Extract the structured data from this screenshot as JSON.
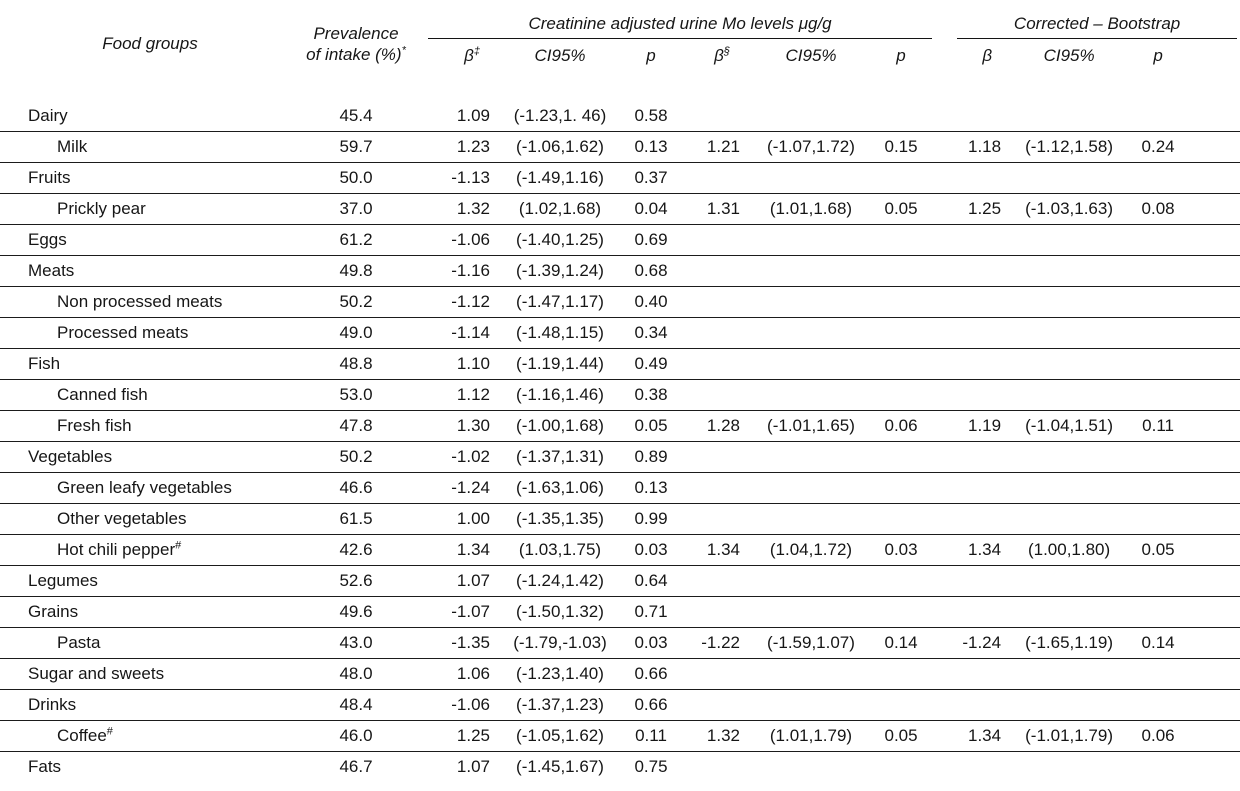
{
  "colors": {
    "background": "#ffffff",
    "text": "#161616",
    "rule": "#1b1b1b"
  },
  "header": {
    "col_food": "Food groups",
    "prevalence_line1": "Prevalence",
    "prevalence_line2": "of intake (%)",
    "prevalence_sup": "*",
    "span_creatinine": "Creatinine adjusted urine Mo levels μg/g",
    "span_bootstrap": "Corrected – Bootstrap",
    "subcols": [
      {
        "text": "β",
        "sup": "‡"
      },
      {
        "text": "CI95%",
        "sup": ""
      },
      {
        "text": "p",
        "sup": ""
      },
      {
        "text": "β",
        "sup": "§"
      },
      {
        "text": "CI95%",
        "sup": ""
      },
      {
        "text": "p",
        "sup": ""
      },
      {
        "text": "β",
        "sup": ""
      },
      {
        "text": "CI95%",
        "sup": ""
      },
      {
        "text": "p",
        "sup": ""
      }
    ]
  },
  "rows": [
    {
      "label": "Dairy",
      "sup": "",
      "indent": false,
      "values": [
        "45.4",
        "1.09",
        "(-1.23,1. 46)",
        "0.58",
        "",
        "",
        "",
        "",
        "",
        ""
      ]
    },
    {
      "label": "Milk",
      "sup": "",
      "indent": true,
      "values": [
        "59.7",
        "1.23",
        "(-1.06,1.62)",
        "0.13",
        "1.21",
        "(-1.07,1.72)",
        "0.15",
        "1.18",
        "(-1.12,1.58)",
        "0.24"
      ]
    },
    {
      "label": "Fruits",
      "sup": "",
      "indent": false,
      "values": [
        "50.0",
        "-1.13",
        "(-1.49,1.16)",
        "0.37",
        "",
        "",
        "",
        "",
        "",
        ""
      ]
    },
    {
      "label": "Prickly pear",
      "sup": "",
      "indent": true,
      "values": [
        "37.0",
        "1.32",
        "(1.02,1.68)",
        "0.04",
        "1.31",
        "(1.01,1.68)",
        "0.05",
        "1.25",
        "(-1.03,1.63)",
        "0.08"
      ]
    },
    {
      "label": "Eggs",
      "sup": "",
      "indent": false,
      "values": [
        "61.2",
        "-1.06",
        "(-1.40,1.25)",
        "0.69",
        "",
        "",
        "",
        "",
        "",
        ""
      ]
    },
    {
      "label": "Meats",
      "sup": "",
      "indent": false,
      "values": [
        "49.8",
        "-1.16",
        "(-1.39,1.24)",
        "0.68",
        "",
        "",
        "",
        "",
        "",
        ""
      ]
    },
    {
      "label": "Non processed meats",
      "sup": "",
      "indent": true,
      "values": [
        "50.2",
        "-1.12",
        "(-1.47,1.17)",
        "0.40",
        "",
        "",
        "",
        "",
        "",
        ""
      ]
    },
    {
      "label": "Processed meats",
      "sup": "",
      "indent": true,
      "values": [
        "49.0",
        "-1.14",
        "(-1.48,1.15)",
        "0.34",
        "",
        "",
        "",
        "",
        "",
        ""
      ]
    },
    {
      "label": "Fish",
      "sup": "",
      "indent": false,
      "values": [
        "48.8",
        "1.10",
        "(-1.19,1.44)",
        "0.49",
        "",
        "",
        "",
        "",
        "",
        ""
      ]
    },
    {
      "label": "Canned fish",
      "sup": "",
      "indent": true,
      "values": [
        "53.0",
        "1.12",
        "(-1.16,1.46)",
        "0.38",
        "",
        "",
        "",
        "",
        "",
        ""
      ]
    },
    {
      "label": "Fresh fish",
      "sup": "",
      "indent": true,
      "values": [
        "47.8",
        "1.30",
        "(-1.00,1.68)",
        "0.05",
        "1.28",
        "(-1.01,1.65)",
        "0.06",
        "1.19",
        "(-1.04,1.51)",
        "0.11"
      ]
    },
    {
      "label": "Vegetables",
      "sup": "",
      "indent": false,
      "values": [
        "50.2",
        "-1.02",
        "(-1.37,1.31)",
        "0.89",
        "",
        "",
        "",
        "",
        "",
        ""
      ]
    },
    {
      "label": "Green leafy vegetables",
      "sup": "",
      "indent": true,
      "values": [
        "46.6",
        "-1.24",
        "(-1.63,1.06)",
        "0.13",
        "",
        "",
        "",
        "",
        "",
        ""
      ]
    },
    {
      "label": "Other vegetables",
      "sup": "",
      "indent": true,
      "values": [
        "61.5",
        "1.00",
        "(-1.35,1.35)",
        "0.99",
        "",
        "",
        "",
        "",
        "",
        ""
      ]
    },
    {
      "label": "Hot chili pepper",
      "sup": "#",
      "indent": true,
      "values": [
        "42.6",
        "1.34",
        "(1.03,1.75)",
        "0.03",
        "1.34",
        "(1.04,1.72)",
        "0.03",
        "1.34",
        "(1.00,1.80)",
        "0.05"
      ]
    },
    {
      "label": "Legumes",
      "sup": "",
      "indent": false,
      "values": [
        "52.6",
        "1.07",
        "(-1.24,1.42)",
        "0.64",
        "",
        "",
        "",
        "",
        "",
        ""
      ]
    },
    {
      "label": "Grains",
      "sup": "",
      "indent": false,
      "values": [
        "49.6",
        "-1.07",
        "(-1.50,1.32)",
        "0.71",
        "",
        "",
        "",
        "",
        "",
        ""
      ]
    },
    {
      "label": "Pasta",
      "sup": "",
      "indent": true,
      "values": [
        "43.0",
        "-1.35",
        "(-1.79,-1.03)",
        "0.03",
        "-1.22",
        "(-1.59,1.07)",
        "0.14",
        "-1.24",
        "(-1.65,1.19)",
        "0.14"
      ]
    },
    {
      "label": "Sugar and sweets",
      "sup": "",
      "indent": false,
      "values": [
        "48.0",
        "1.06",
        "(-1.23,1.40)",
        "0.66",
        "",
        "",
        "",
        "",
        "",
        ""
      ]
    },
    {
      "label": "Drinks",
      "sup": "",
      "indent": false,
      "values": [
        "48.4",
        "-1.06",
        "(-1.37,1.23)",
        "0.66",
        "",
        "",
        "",
        "",
        "",
        ""
      ]
    },
    {
      "label": "Coffee",
      "sup": "#",
      "indent": true,
      "values": [
        "46.0",
        "1.25",
        "(-1.05,1.62)",
        "0.11",
        "1.32",
        "(1.01,1.79)",
        "0.05",
        "1.34",
        "(-1.01,1.79)",
        "0.06"
      ]
    },
    {
      "label": "Fats",
      "sup": "",
      "indent": false,
      "values": [
        "46.7",
        "1.07",
        "(-1.45,1.67)",
        "0.75",
        "",
        "",
        "",
        "",
        "",
        ""
      ]
    }
  ]
}
